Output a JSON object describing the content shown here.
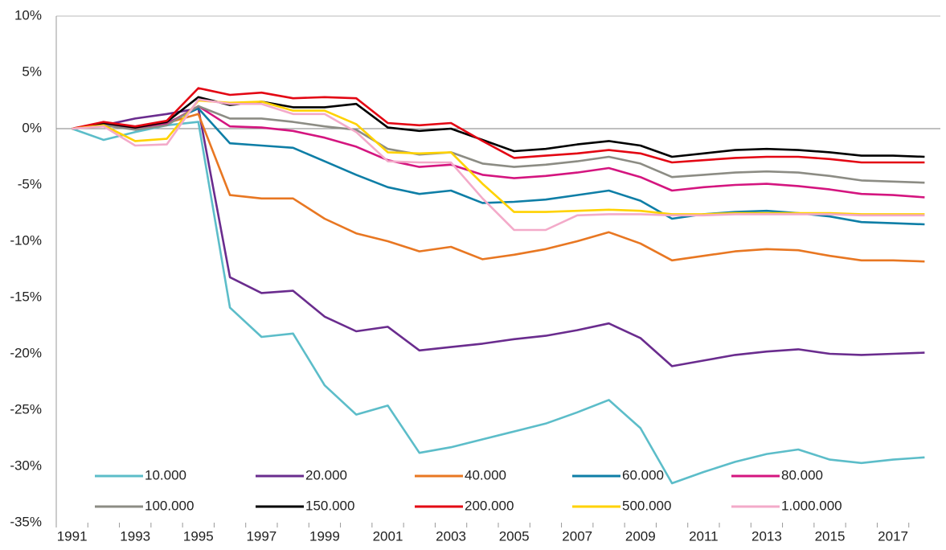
{
  "chart_data": {
    "type": "line",
    "categories": [
      "1991",
      null,
      "1993",
      null,
      "1995",
      null,
      "1997",
      null,
      "1999",
      null,
      "2001",
      null,
      "2003",
      null,
      "2005",
      null,
      "2007",
      null,
      "2009",
      null,
      "2011",
      null,
      "2013",
      null,
      "2015",
      null,
      "2017",
      null
    ],
    "ylim": [
      -35,
      10
    ],
    "yticks": [
      {
        "value": 10,
        "label": "10%"
      },
      {
        "value": 5,
        "label": "5%"
      },
      {
        "value": 0,
        "label": "0%"
      },
      {
        "value": -5,
        "label": "-5%"
      },
      {
        "value": -10,
        "label": "-10%"
      },
      {
        "value": -15,
        "label": "-15%"
      },
      {
        "value": -20,
        "label": "-20%"
      },
      {
        "value": -25,
        "label": "-25%"
      },
      {
        "value": -30,
        "label": "-30%"
      },
      {
        "value": -35,
        "label": "-35%"
      }
    ],
    "grid": false,
    "series": [
      {
        "name": "10.000",
        "color": "#5cbdc9",
        "values": [
          0,
          -1.0,
          -0.3,
          0.3,
          0.6,
          -15.9,
          -18.5,
          -18.2,
          -22.8,
          -25.4,
          -24.6,
          -28.8,
          -28.3,
          -27.6,
          -26.9,
          -26.2,
          -25.2,
          -24.1,
          -26.6,
          -31.5,
          -30.5,
          -29.6,
          -28.9,
          -28.5,
          -29.4,
          -29.7,
          -29.4,
          -29.2
        ]
      },
      {
        "name": "20.000",
        "color": "#6a2c8e",
        "values": [
          0,
          0.3,
          0.9,
          1.3,
          1.8,
          -13.2,
          -14.6,
          -14.4,
          -16.7,
          -18.0,
          -17.6,
          -19.7,
          -19.4,
          -19.1,
          -18.7,
          -18.4,
          -17.9,
          -17.3,
          -18.6,
          -21.1,
          -20.6,
          -20.1,
          -19.8,
          -19.6,
          -20.0,
          -20.1,
          -20.0,
          -19.9
        ]
      },
      {
        "name": "40.000",
        "color": "#e87722",
        "values": [
          0,
          0.4,
          0,
          0.5,
          1.3,
          -5.9,
          -6.2,
          -6.2,
          -8.0,
          -9.3,
          -10.0,
          -10.9,
          -10.5,
          -11.6,
          -11.2,
          -10.7,
          -10.0,
          -9.2,
          -10.2,
          -11.7,
          -11.3,
          -10.9,
          -10.7,
          -10.8,
          -11.3,
          -11.7,
          -11.7,
          -11.8
        ]
      },
      {
        "name": "60.000",
        "color": "#0e7ea6",
        "values": [
          0,
          0.4,
          0,
          0.5,
          1.8,
          -1.3,
          -1.5,
          -1.7,
          -2.9,
          -4.1,
          -5.2,
          -5.8,
          -5.5,
          -6.6,
          -6.5,
          -6.3,
          -5.9,
          -5.5,
          -6.4,
          -8.0,
          -7.6,
          -7.4,
          -7.3,
          -7.5,
          -7.8,
          -8.3,
          -8.4,
          -8.5
        ]
      },
      {
        "name": "80.000",
        "color": "#d4157f",
        "values": [
          0,
          0.3,
          0,
          0.4,
          2.0,
          0.2,
          0.1,
          -0.2,
          -0.8,
          -1.6,
          -2.8,
          -3.4,
          -3.2,
          -4.1,
          -4.4,
          -4.2,
          -3.9,
          -3.5,
          -4.3,
          -5.5,
          -5.2,
          -5.0,
          -4.9,
          -5.1,
          -5.4,
          -5.8,
          -5.9,
          -6.1
        ]
      },
      {
        "name": "100.000",
        "color": "#8c8c84",
        "values": [
          0,
          0.3,
          -0.1,
          0.3,
          2.0,
          0.9,
          0.9,
          0.6,
          0.2,
          -0.1,
          -1.8,
          -2.3,
          -2.1,
          -3.1,
          -3.4,
          -3.2,
          -2.9,
          -2.5,
          -3.1,
          -4.3,
          -4.1,
          -3.9,
          -3.8,
          -3.9,
          -4.2,
          -4.6,
          -4.7,
          -4.8
        ]
      },
      {
        "name": "150.000",
        "color": "#000000",
        "values": [
          0,
          0.5,
          0.1,
          0.6,
          2.8,
          2.1,
          2.4,
          1.9,
          1.9,
          2.2,
          0.1,
          -0.2,
          0,
          -1.0,
          -2.0,
          -1.8,
          -1.4,
          -1.1,
          -1.5,
          -2.5,
          -2.2,
          -1.9,
          -1.8,
          -1.9,
          -2.1,
          -2.4,
          -2.4,
          -2.5
        ]
      },
      {
        "name": "200.000",
        "color": "#e30613",
        "values": [
          0,
          0.6,
          0.2,
          0.7,
          3.6,
          3.0,
          3.2,
          2.7,
          2.8,
          2.7,
          0.5,
          0.3,
          0.5,
          -1.1,
          -2.6,
          -2.4,
          -2.2,
          -1.9,
          -2.2,
          -3.0,
          -2.8,
          -2.6,
          -2.5,
          -2.5,
          -2.7,
          -3.0,
          -3.0,
          -3.0
        ]
      },
      {
        "name": "500.000",
        "color": "#ffd200",
        "values": [
          0,
          0.3,
          -1.1,
          -0.9,
          2.5,
          2.3,
          2.4,
          1.6,
          1.6,
          0.4,
          -2.1,
          -2.2,
          -2.1,
          -4.9,
          -7.4,
          -7.4,
          -7.3,
          -7.2,
          -7.3,
          -7.6,
          -7.6,
          -7.5,
          -7.5,
          -7.5,
          -7.5,
          -7.6,
          -7.6,
          -7.6
        ]
      },
      {
        "name": "1.000.000",
        "color": "#f3aac9",
        "values": [
          0,
          0.2,
          -1.5,
          -1.4,
          2.6,
          2.2,
          2.2,
          1.3,
          1.3,
          -0.3,
          -2.9,
          -3.0,
          -3.0,
          -6.2,
          -9.0,
          -9.0,
          -7.7,
          -7.6,
          -7.6,
          -7.7,
          -7.7,
          -7.6,
          -7.6,
          -7.6,
          -7.6,
          -7.7,
          -7.7,
          -7.7
        ]
      }
    ]
  }
}
